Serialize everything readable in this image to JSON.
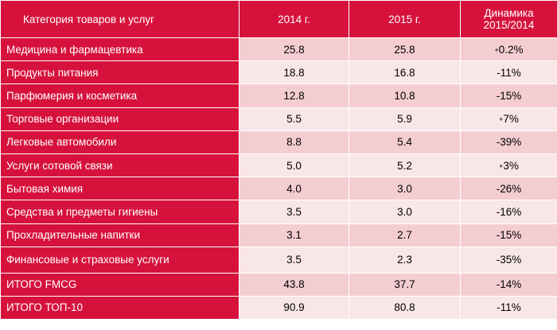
{
  "header": {
    "category": "Категория товаров и услуг",
    "year2014": "2014 г.",
    "year2015": "2015 г.",
    "dynamics_line1": "Динамика",
    "dynamics_line2": "2015/2014"
  },
  "rows": [
    {
      "category": "Медицина и фармацевтика",
      "v2014": "25.8",
      "v2015": "25.8",
      "sign": "+",
      "dynamics": "0.2%"
    },
    {
      "category": "Продукты питания",
      "v2014": "18.8",
      "v2015": "16.8",
      "sign": "",
      "dynamics": "-11%"
    },
    {
      "category": "Парфюмерия и косметика",
      "v2014": "12.8",
      "v2015": "10.8",
      "sign": "",
      "dynamics": "-15%"
    },
    {
      "category": "Торговые организации",
      "v2014": "5.5",
      "v2015": "5.9",
      "sign": "+",
      "dynamics": "7%"
    },
    {
      "category": "Легковые автомобили",
      "v2014": "8.8",
      "v2015": "5.4",
      "sign": "",
      "dynamics": "-39%"
    },
    {
      "category": "Услуги сотовой связи",
      "v2014": "5.0",
      "v2015": "5.2",
      "sign": "+",
      "dynamics": "3%"
    },
    {
      "category": "Бытовая химия",
      "v2014": "4.0",
      "v2015": "3.0",
      "sign": "",
      "dynamics": "-26%"
    },
    {
      "category": "Средства и предметы гигиены",
      "v2014": "3.5",
      "v2015": "3.0",
      "sign": "",
      "dynamics": "-16%"
    },
    {
      "category": "Прохладительные напитки",
      "v2014": "3.1",
      "v2015": "2.7",
      "sign": "",
      "dynamics": "-15%"
    },
    {
      "category": "Финансовые и страховые услуги",
      "v2014": "3.5",
      "v2015": "2.3",
      "sign": "",
      "dynamics": "-35%"
    },
    {
      "category": "ИТОГО FMCG",
      "v2014": "43.8",
      "v2015": "37.7",
      "sign": "",
      "dynamics": "-14%"
    },
    {
      "category": "ИТОГО ТОП-10",
      "v2014": "90.9",
      "v2015": "80.8",
      "sign": "",
      "dynamics": "-11%"
    }
  ],
  "colors": {
    "header_bg": "#d6123c",
    "row_odd": "#f4cdd1",
    "row_even": "#f9e6e8"
  }
}
